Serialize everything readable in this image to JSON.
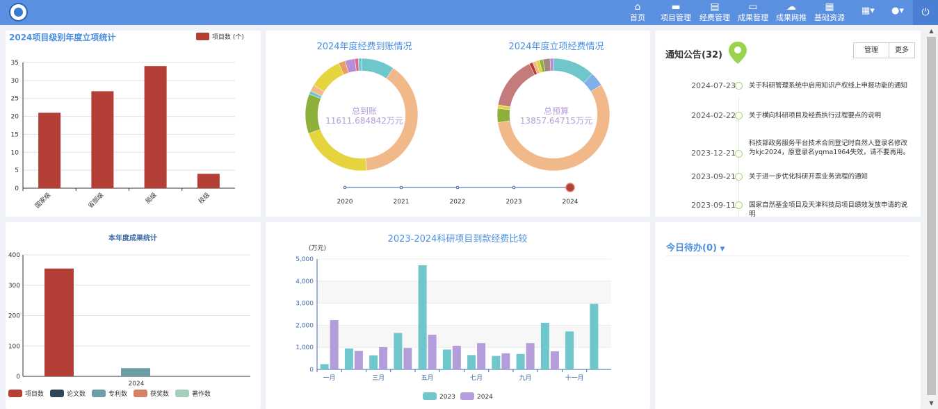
{
  "nav": {
    "items": [
      {
        "label": "首页",
        "icon": "home-icon"
      },
      {
        "label": "项目管理",
        "icon": "folder-icon"
      },
      {
        "label": "经费管理",
        "icon": "ledger-icon"
      },
      {
        "label": "成果管理",
        "icon": "inbox-icon"
      },
      {
        "label": "成果网推",
        "icon": "cloud-upload-icon"
      },
      {
        "label": "基础资源",
        "icon": "grid-icon"
      }
    ]
  },
  "panel1": {
    "title": "2024项目级别年度立项统计",
    "legend": "项目数 (个)",
    "chart_data": {
      "type": "bar",
      "categories": [
        "国家级",
        "省部级",
        "局级",
        "校级"
      ],
      "values": [
        21,
        27,
        34,
        4
      ],
      "ylim": [
        0,
        35
      ],
      "yticks": [
        "0",
        "5",
        "10",
        "15",
        "20",
        "25",
        "30",
        "35"
      ],
      "legend": "项目数 (个)",
      "color": "#b33f37"
    }
  },
  "panel2": {
    "title_left": "2024年度经费到账情况",
    "title_right": "2024年度立项经费情况",
    "center_left_label": "总到账",
    "center_left_value": "11611.684842万元",
    "center_right_label": "总预算",
    "center_right_value": "13857.64715万元",
    "donut_left": {
      "type": "pie",
      "values": [
        10,
        41,
        22,
        12,
        1,
        2,
        10,
        2,
        3,
        1,
        1
      ],
      "colors": [
        "#6fc7cc",
        "#f1b98a",
        "#e6d43e",
        "#8cb03a",
        "#6fc7cc",
        "#f1b98a",
        "#e6d43e",
        "#e8a060",
        "#b88ed8",
        "#d96c83",
        "#6fc7cc"
      ]
    },
    "donut_right": {
      "type": "pie",
      "values": [
        12,
        4,
        56,
        4,
        1,
        15,
        1,
        1,
        1,
        1,
        2,
        1
      ],
      "colors": [
        "#6fc7cc",
        "#7fb0ea",
        "#f1b98a",
        "#8cb03a",
        "#e6d43e",
        "#c47b7b",
        "#b33f37",
        "#f1b98a",
        "#e6d43e",
        "#8cb03a",
        "#9e8a7a",
        "#b88ed8"
      ]
    },
    "timeline": [
      "2020",
      "2021",
      "2022",
      "2023",
      "2024"
    ],
    "timeline_selected": "2024"
  },
  "panel3": {
    "title": "通知公告(32)",
    "manage_label": "管理",
    "more_label": "更多",
    "notices": [
      {
        "date": "2024-07-23",
        "text": "关于科研管理系统中启用知识产权线上申报功能的通知"
      },
      {
        "date": "2024-02-22",
        "text": "关于横向科研项目及经费执行过程要点的说明"
      },
      {
        "date": "2023-12-21",
        "text": "科技部政务服务平台技术合同登记时自然人登录名修改为kjc2024，原登录名yqma1964失效，请不要再用。"
      },
      {
        "date": "2023-09-21",
        "text": "关于进一步优化科研开票业务流程的通知"
      },
      {
        "date": "2023-09-11",
        "text": "国家自然基金项目及天津科技局项目绩效发放申请的说明"
      }
    ]
  },
  "panel4": {
    "title": "本年度成果统计",
    "chart_data": {
      "type": "bar",
      "categories": [
        "2024"
      ],
      "series": [
        {
          "name": "项目数",
          "values": [
            355
          ],
          "color": "#b33f37"
        },
        {
          "name": "论文数",
          "values": [
            0
          ],
          "color": "#2f4554"
        },
        {
          "name": "专利数",
          "values": [
            27
          ],
          "color": "#6e9ea5"
        },
        {
          "name": "获奖数",
          "values": [
            0
          ],
          "color": "#d48265"
        },
        {
          "name": "著作数",
          "values": [
            0
          ],
          "color": "#a3cfb8"
        }
      ],
      "ylim": [
        0,
        400
      ],
      "yticks": [
        "0",
        "100",
        "200",
        "300",
        "400"
      ]
    }
  },
  "panel5": {
    "title": "2023-2024科研项目到款经费比较",
    "unit": "(万元)",
    "chart_data": {
      "type": "bar",
      "categories": [
        "一月",
        "二月",
        "三月",
        "四月",
        "五月",
        "六月",
        "七月",
        "八月",
        "九月",
        "十月",
        "十一月",
        "十二月"
      ],
      "xticks": [
        "一月",
        "三月",
        "五月",
        "七月",
        "九月",
        "十一月"
      ],
      "series": [
        {
          "name": "2023",
          "values": [
            240,
            950,
            640,
            1650,
            4720,
            900,
            650,
            610,
            700,
            2110,
            1720,
            2970
          ],
          "color": "#6fc7cc"
        },
        {
          "name": "2024",
          "values": [
            2230,
            840,
            1010,
            970,
            1570,
            1070,
            1190,
            730,
            1190,
            820,
            0,
            0
          ],
          "color": "#b39ddb"
        }
      ],
      "ylim": [
        0,
        5000
      ],
      "yticks": [
        "0",
        "1,000",
        "2,000",
        "3,000",
        "4,000",
        "5,000"
      ]
    }
  },
  "panel6": {
    "title": "今日待办(0)"
  }
}
